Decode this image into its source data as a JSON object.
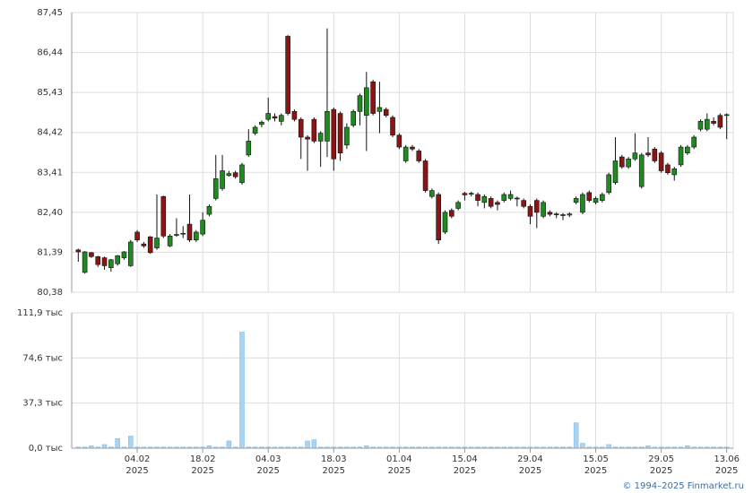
{
  "chart_data": [
    {
      "type": "candlestick",
      "open": [
        81.45,
        80.88,
        81.38,
        81.28,
        81.25,
        81.0,
        81.1,
        81.25,
        81.05,
        81.9,
        81.6,
        81.78,
        81.5,
        82.8,
        81.55,
        81.82,
        81.85,
        82.1,
        81.7,
        81.85,
        82.35,
        82.75,
        83.0,
        83.33,
        83.4,
        83.15,
        83.85,
        84.4,
        84.62,
        84.75,
        84.82,
        84.7,
        86.85,
        84.95,
        84.75,
        84.3,
        84.75,
        84.2,
        84.2,
        85.0,
        84.9,
        84.1,
        84.6,
        84.95,
        84.85,
        85.7,
        84.95,
        85.0,
        84.8,
        84.35,
        83.7,
        84.05,
        83.95,
        83.7,
        82.8,
        82.85,
        81.9,
        82.45,
        82.5,
        82.88,
        82.86,
        82.85,
        82.65,
        82.75,
        82.65,
        82.7,
        82.75,
        82.76,
        82.7,
        82.55,
        82.7,
        82.3,
        82.4,
        82.36,
        82.34,
        82.33,
        82.65,
        82.4,
        82.9,
        82.65,
        82.7,
        82.9,
        83.15,
        83.8,
        83.55,
        83.75,
        83.05,
        83.9,
        84.0,
        83.9,
        83.6,
        83.35,
        83.6,
        83.9,
        84.05,
        84.5,
        84.5,
        84.7,
        84.85,
        84.85
      ],
      "high": [
        81.48,
        81.42,
        81.4,
        81.3,
        81.28,
        81.22,
        81.32,
        81.42,
        81.7,
        81.95,
        81.65,
        81.8,
        82.85,
        82.82,
        81.85,
        82.25,
        82.05,
        82.85,
        81.95,
        82.4,
        82.6,
        83.85,
        83.85,
        83.45,
        83.45,
        83.65,
        84.5,
        84.6,
        84.72,
        85.3,
        84.9,
        84.9,
        86.88,
        85.0,
        84.8,
        84.35,
        84.8,
        84.45,
        87.05,
        85.05,
        84.95,
        84.65,
        85.0,
        85.4,
        85.95,
        85.75,
        85.7,
        85.05,
        84.85,
        84.4,
        84.1,
        84.1,
        84.0,
        83.75,
        83.0,
        82.9,
        82.45,
        82.5,
        82.7,
        82.92,
        82.92,
        82.9,
        82.85,
        82.8,
        82.7,
        82.9,
        82.95,
        82.8,
        82.75,
        82.6,
        82.75,
        82.7,
        82.45,
        82.4,
        82.38,
        82.4,
        82.8,
        82.9,
        82.95,
        82.8,
        82.9,
        83.4,
        84.3,
        83.85,
        83.8,
        84.4,
        83.9,
        84.3,
        84.05,
        83.95,
        83.65,
        83.55,
        84.1,
        84.1,
        84.35,
        84.75,
        84.9,
        84.8,
        84.9,
        84.9
      ],
      "low": [
        81.15,
        80.85,
        81.25,
        81.02,
        80.95,
        80.9,
        81.05,
        81.2,
        81.02,
        81.65,
        81.5,
        81.35,
        81.45,
        81.75,
        81.52,
        81.78,
        81.75,
        81.65,
        81.65,
        81.8,
        82.3,
        82.7,
        82.95,
        83.3,
        83.25,
        83.1,
        83.8,
        84.35,
        84.55,
        84.7,
        84.7,
        84.6,
        84.85,
        84.7,
        83.75,
        83.45,
        84.15,
        83.55,
        83.8,
        83.45,
        83.7,
        84.0,
        84.55,
        84.6,
        83.95,
        84.85,
        84.4,
        84.8,
        84.3,
        84.0,
        83.65,
        83.95,
        83.65,
        82.9,
        82.75,
        81.6,
        81.85,
        82.25,
        82.45,
        82.7,
        82.8,
        82.55,
        82.5,
        82.5,
        82.45,
        82.65,
        82.7,
        82.55,
        82.5,
        82.1,
        82.0,
        82.25,
        82.3,
        82.25,
        82.2,
        82.28,
        82.6,
        82.35,
        82.65,
        82.6,
        82.65,
        82.85,
        83.1,
        83.5,
        83.5,
        83.7,
        83.0,
        83.8,
        83.65,
        83.4,
        83.35,
        83.2,
        83.55,
        83.85,
        84.0,
        84.45,
        84.45,
        84.6,
        84.5,
        84.25
      ],
      "close": [
        81.4,
        81.4,
        81.28,
        81.08,
        81.05,
        81.2,
        81.3,
        81.4,
        81.65,
        81.7,
        81.55,
        81.38,
        81.75,
        81.8,
        81.8,
        81.84,
        81.87,
        81.7,
        81.9,
        82.2,
        82.55,
        83.25,
        83.45,
        83.38,
        83.3,
        83.6,
        84.2,
        84.55,
        84.68,
        84.9,
        84.78,
        84.85,
        84.9,
        84.75,
        84.3,
        84.25,
        84.2,
        84.4,
        84.95,
        83.75,
        83.9,
        84.55,
        84.95,
        85.35,
        85.55,
        84.9,
        85.05,
        84.85,
        84.35,
        84.05,
        84.05,
        84.0,
        83.7,
        82.95,
        82.95,
        81.7,
        82.4,
        82.3,
        82.65,
        82.84,
        82.88,
        82.7,
        82.8,
        82.55,
        82.6,
        82.85,
        82.85,
        82.74,
        82.55,
        82.3,
        82.4,
        82.65,
        82.35,
        82.34,
        82.32,
        82.36,
        82.75,
        82.85,
        82.7,
        82.75,
        82.85,
        83.35,
        83.7,
        83.55,
        83.75,
        83.9,
        83.85,
        83.85,
        83.7,
        83.45,
        83.4,
        83.5,
        84.05,
        84.05,
        84.3,
        84.7,
        84.75,
        84.65,
        84.55,
        84.87
      ],
      "up_color": "#1f8a1f",
      "down_color": "#8b1414",
      "xlim": [
        -1,
        100
      ],
      "ylim": [
        80.38,
        87.45
      ],
      "yticks": [
        {
          "value": 80.38,
          "label": "80,38"
        },
        {
          "value": 81.39,
          "label": "81,39"
        },
        {
          "value": 82.4,
          "label": "82,40"
        },
        {
          "value": 83.41,
          "label": "83,41"
        },
        {
          "value": 84.42,
          "label": "84,42"
        },
        {
          "value": 85.43,
          "label": "85,43"
        },
        {
          "value": 86.44,
          "label": "86,44"
        },
        {
          "value": 87.45,
          "label": "87,45"
        }
      ],
      "grid": true
    },
    {
      "type": "bar",
      "values": [
        1,
        1,
        2,
        1,
        3,
        1,
        8,
        1,
        10,
        1,
        1,
        1,
        1,
        1,
        1,
        1,
        1,
        1,
        1,
        1,
        2,
        1,
        1,
        6,
        1,
        96,
        1,
        1,
        1,
        1,
        1,
        1,
        1,
        1,
        1,
        6,
        7,
        1,
        1,
        1,
        1,
        1,
        1,
        1,
        2,
        1,
        1,
        1,
        1,
        1,
        1,
        1,
        1,
        1,
        1,
        1,
        1,
        1,
        1,
        1,
        1,
        1,
        1,
        1,
        1,
        1,
        1,
        1,
        1,
        1,
        1,
        1,
        1,
        1,
        1,
        1,
        21,
        4,
        1,
        1,
        1,
        3,
        1,
        1,
        1,
        1,
        1,
        2,
        1,
        1,
        1,
        1,
        1,
        2,
        1,
        1,
        1,
        1,
        1,
        1
      ],
      "color": "#a9d3f2",
      "xlim": [
        -1,
        100
      ],
      "ylim": [
        0,
        111.9
      ],
      "yticks": [
        {
          "value": 0,
          "label": "0,0 тыс"
        },
        {
          "value": 37.3,
          "label": "37,3 тыс"
        },
        {
          "value": 74.6,
          "label": "74,6 тыс"
        },
        {
          "value": 111.9,
          "label": "111,9 тыс"
        }
      ],
      "xticks": [
        {
          "value": 9,
          "label": "04.02",
          "year": "2025"
        },
        {
          "value": 19,
          "label": "18.02",
          "year": "2025"
        },
        {
          "value": 29,
          "label": "04.03",
          "year": "2025"
        },
        {
          "value": 39,
          "label": "18.03",
          "year": "2025"
        },
        {
          "value": 49,
          "label": "01.04",
          "year": "2025"
        },
        {
          "value": 59,
          "label": "15.04",
          "year": "2025"
        },
        {
          "value": 69,
          "label": "29.04",
          "year": "2025"
        },
        {
          "value": 79,
          "label": "15.05",
          "year": "2025"
        },
        {
          "value": 89,
          "label": "29.05",
          "year": "2025"
        },
        {
          "value": 99,
          "label": "13.06",
          "year": "2025"
        }
      ],
      "grid": true
    }
  ],
  "credit": "© 1994–2025 Finmarket.ru"
}
